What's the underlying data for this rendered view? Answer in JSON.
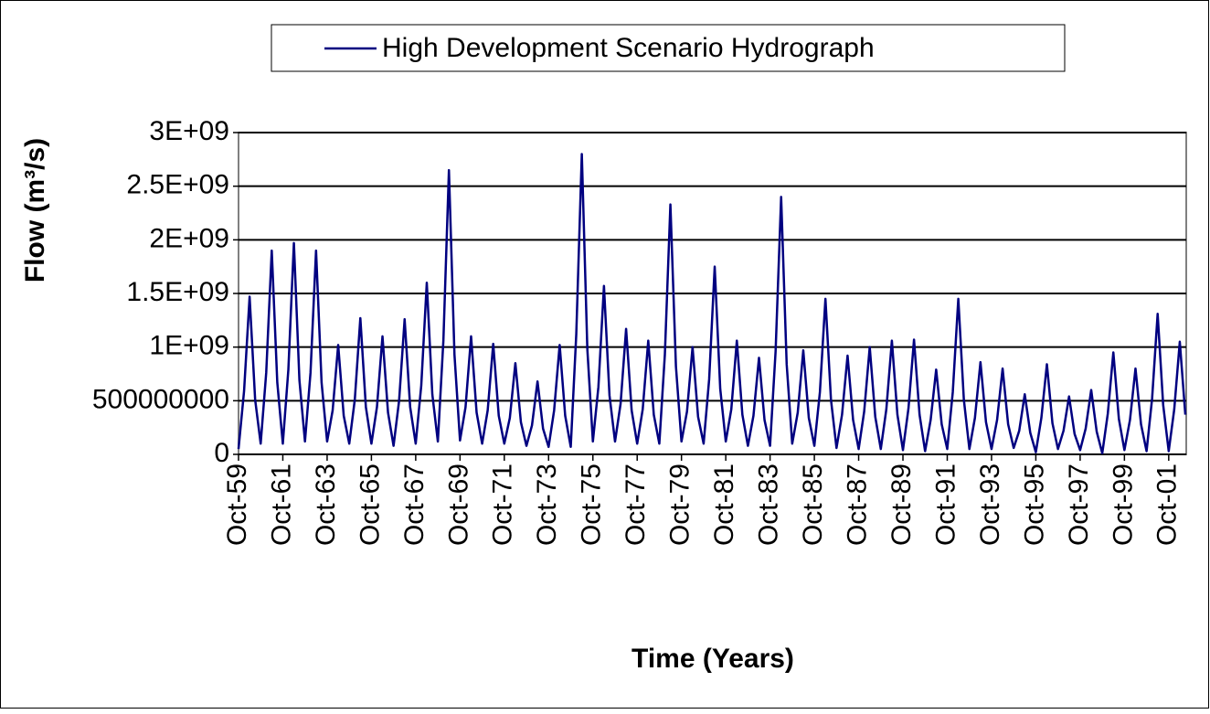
{
  "chart_data": {
    "type": "line",
    "x_label": "Time (Years)",
    "y_label": "Flow (m³/s)",
    "categories": [
      "Oct-59",
      null,
      null,
      null,
      null,
      null,
      null,
      null,
      "Oct-61",
      null,
      null,
      null,
      null,
      null,
      null,
      null,
      "Oct-63",
      null,
      null,
      null,
      null,
      null,
      null,
      null,
      "Oct-65",
      null,
      null,
      null,
      null,
      null,
      null,
      null,
      "Oct-67",
      null,
      null,
      null,
      null,
      null,
      null,
      null,
      "Oct-69",
      null,
      null,
      null,
      null,
      null,
      null,
      null,
      "Oct-71",
      null,
      null,
      null,
      null,
      null,
      null,
      null,
      "Oct-73",
      null,
      null,
      null,
      null,
      null,
      null,
      null,
      "Oct-75",
      null,
      null,
      null,
      null,
      null,
      null,
      null,
      "Oct-77",
      null,
      null,
      null,
      null,
      null,
      null,
      null,
      "Oct-79",
      null,
      null,
      null,
      null,
      null,
      null,
      null,
      "Oct-81",
      null,
      null,
      null,
      null,
      null,
      null,
      null,
      "Oct-83",
      null,
      null,
      null,
      null,
      null,
      null,
      null,
      "Oct-85",
      null,
      null,
      null,
      null,
      null,
      null,
      null,
      "Oct-87",
      null,
      null,
      null,
      null,
      null,
      null,
      null,
      "Oct-89",
      null,
      null,
      null,
      null,
      null,
      null,
      null,
      "Oct-91",
      null,
      null,
      null,
      null,
      null,
      null,
      null,
      "Oct-93",
      null,
      null,
      null,
      null,
      null,
      null,
      null,
      "Oct-95",
      null,
      null,
      null,
      null,
      null,
      null,
      null,
      "Oct-97",
      null,
      null,
      null,
      null,
      null,
      null,
      null,
      "Oct-99",
      null,
      null,
      null,
      null,
      null,
      null,
      null,
      "Oct-01",
      null,
      null,
      null
    ],
    "series": [
      {
        "name": "High Development Scenario Hydrograph",
        "color": "#000080",
        "values": [
          50000000.0,
          590000000.0,
          1470000000.0,
          510000000.0,
          100000000.0,
          760000000.0,
          1900000000.0,
          670000000.0,
          100000000.0,
          790000000.0,
          1970000000.0,
          690000000.0,
          120000000.0,
          760000000.0,
          1900000000.0,
          670000000.0,
          120000000.0,
          410000000.0,
          1020000000.0,
          360000000.0,
          100000000.0,
          510000000.0,
          1270000000.0,
          440000000.0,
          100000000.0,
          440000000.0,
          1100000000.0,
          390000000.0,
          80000000.0,
          500000000.0,
          1260000000.0,
          440000000.0,
          100000000.0,
          640000000.0,
          1600000000.0,
          560000000.0,
          120000000.0,
          1060000000.0,
          2650000000.0,
          930000000.0,
          130000000.0,
          440000000.0,
          1100000000.0,
          390000000.0,
          100000000.0,
          410000000.0,
          1030000000.0,
          360000000.0,
          100000000.0,
          340000000.0,
          850000000.0,
          300000000.0,
          80000000.0,
          270000000.0,
          680000000.0,
          240000000.0,
          70000000.0,
          410000000.0,
          1020000000.0,
          360000000.0,
          70000000.0,
          1120000000.0,
          2800000000.0,
          980000000.0,
          120000000.0,
          630000000.0,
          1570000000.0,
          550000000.0,
          120000000.0,
          470000000.0,
          1170000000.0,
          410000000.0,
          100000000.0,
          420000000.0,
          1060000000.0,
          370000000.0,
          100000000.0,
          930000000.0,
          2330000000.0,
          820000000.0,
          120000000.0,
          400000000.0,
          1000000000.0,
          350000000.0,
          100000000.0,
          700000000.0,
          1750000000.0,
          610000000.0,
          120000000.0,
          420000000.0,
          1060000000.0,
          370000000.0,
          80000000.0,
          360000000.0,
          900000000.0,
          320000000.0,
          80000000.0,
          960000000.0,
          2400000000.0,
          840000000.0,
          100000000.0,
          390000000.0,
          970000000.0,
          340000000.0,
          80000000.0,
          580000000.0,
          1450000000.0,
          510000000.0,
          60000000.0,
          370000000.0,
          920000000.0,
          320000000.0,
          50000000.0,
          400000000.0,
          1000000000.0,
          350000000.0,
          50000000.0,
          420000000.0,
          1060000000.0,
          370000000.0,
          40000000.0,
          430000000.0,
          1070000000.0,
          370000000.0,
          30000000.0,
          320000000.0,
          790000000.0,
          280000000.0,
          50000000.0,
          580000000.0,
          1450000000.0,
          510000000.0,
          50000000.0,
          340000000.0,
          860000000.0,
          300000000.0,
          50000000.0,
          320000000.0,
          800000000.0,
          280000000.0,
          60000000.0,
          220000000.0,
          560000000.0,
          200000000.0,
          20000000.0,
          340000000.0,
          840000000.0,
          290000000.0,
          50000000.0,
          220000000.0,
          540000000.0,
          190000000.0,
          40000000.0,
          240000000.0,
          600000000.0,
          210000000.0,
          10000000.0,
          380000000.0,
          950000000.0,
          330000000.0,
          40000000.0,
          320000000.0,
          800000000.0,
          280000000.0,
          30000000.0,
          520000000.0,
          1310000000.0,
          460000000.0,
          30000000.0,
          420000000.0,
          1050000000.0,
          370000000.0
        ]
      }
    ],
    "ylim": [
      0,
      3000000000.0
    ],
    "yticks": [
      0,
      500000000,
      {
        "value": 1000000000.0,
        "label": "1E+09"
      },
      {
        "value": 1500000000.0,
        "label": "1.5E+09"
      },
      {
        "value": 2000000000.0,
        "label": "2E+09"
      },
      {
        "value": 2500000000.0,
        "label": "2.5E+09"
      },
      {
        "value": 3000000000.0,
        "label": "3E+09"
      }
    ],
    "grid": true,
    "legend": "top"
  }
}
